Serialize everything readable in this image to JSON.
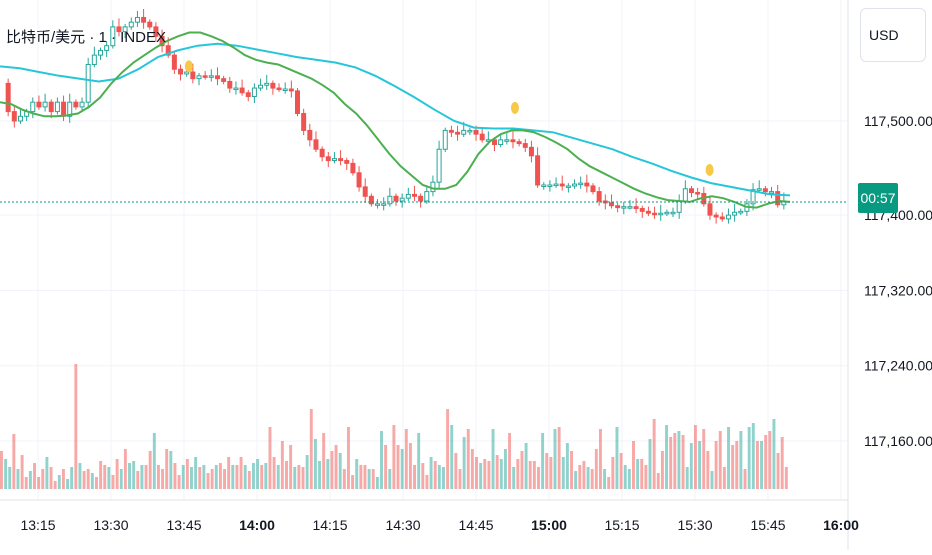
{
  "chart_data": {
    "type": "candlestick",
    "title": "比特币/美元 · 1 · INDEX",
    "currency": "USD",
    "price_axis": {
      "ticks": [
        117160,
        117240,
        117320,
        117400,
        117500
      ],
      "tick_labels": [
        "117,160.00",
        "117,240.00",
        "117,320.00",
        "117,400.00",
        "117,500.00"
      ]
    },
    "time_axis": {
      "ticks": [
        "13:15",
        "13:30",
        "13:45",
        "14:00",
        "14:15",
        "14:30",
        "14:45",
        "15:00",
        "15:15",
        "15:30",
        "15:45",
        "16:00"
      ],
      "bold": [
        "14:00",
        "15:00",
        "16:00"
      ]
    },
    "countdown": "00:57",
    "last_price": 117414,
    "colors": {
      "up": "#26a69a",
      "down": "#ef5350",
      "ma_fast": "#4caf50",
      "ma_slow": "#26c6da",
      "price_line": "#089981",
      "marker": "#f7c948"
    },
    "close_path": [
      117540,
      117510,
      117500,
      117505,
      117510,
      117520,
      117515,
      117520,
      117510,
      117520,
      117505,
      117520,
      117515,
      117520,
      117560,
      117570,
      117575,
      117580,
      117600,
      117595,
      117600,
      117605,
      117610,
      117605,
      117600,
      117590,
      117580,
      117570,
      117555,
      117550,
      117552,
      117545,
      117548,
      117547,
      117548,
      117545,
      117542,
      117535,
      117535,
      117530,
      117526,
      117535,
      117538,
      117540,
      117535,
      117534,
      117534,
      117532,
      117508,
      117490,
      117480,
      117470,
      117462,
      117458,
      117460,
      117458,
      117455,
      117445,
      117430,
      117420,
      117412,
      117412,
      117412,
      117420,
      117415,
      117418,
      117422,
      117420,
      117415,
      117425,
      117435,
      117470,
      117490,
      117488,
      117486,
      117490,
      117490,
      117486,
      117480,
      117480,
      117475,
      117480,
      117480,
      117478,
      117476,
      117472,
      117463,
      117432,
      117432,
      117432,
      117433,
      117431,
      117431,
      117433,
      117434,
      117431,
      117425,
      117415,
      117413,
      117410,
      117408,
      117409,
      117409,
      117407,
      117404,
      117402,
      117401,
      117402,
      117403,
      117403,
      117415,
      117428,
      117424,
      117423,
      117412,
      117400,
      117398,
      117396,
      117400,
      117403,
      117404,
      117412,
      117427,
      117428,
      117425,
      117425,
      117411,
      117415
    ],
    "ma_fast_path": [
      117520,
      117518,
      117512,
      117508,
      117505,
      117505,
      117506,
      117508,
      117515,
      117525,
      117540,
      117552,
      117562,
      117570,
      117578,
      117585,
      117590,
      117594,
      117594,
      117590,
      117585,
      117578,
      117570,
      117565,
      117562,
      117560,
      117555,
      117550,
      117545,
      117538,
      117530,
      117518,
      117508,
      117495,
      117480,
      117465,
      117452,
      117442,
      117432,
      117428,
      117428,
      117432,
      117446,
      117465,
      117478,
      117486,
      117490,
      117490,
      117488,
      117483,
      117477,
      117470,
      117460,
      117452,
      117446,
      117440,
      117434,
      117428,
      117423,
      117419,
      117416,
      117415,
      117414,
      117418,
      117420,
      117418,
      117414,
      117409,
      117408,
      117412,
      117415,
      117414
    ],
    "ma_slow_path": [
      117558,
      117556,
      117552,
      117548,
      117545,
      117542,
      117545,
      117555,
      117568,
      117575,
      117580,
      117582,
      117580,
      117576,
      117572,
      117568,
      117565,
      117562,
      117557,
      117548,
      117537,
      117525,
      117512,
      117500,
      117493,
      117492,
      117492,
      117490,
      117488,
      117482,
      117476,
      117470,
      117462,
      117455,
      117447,
      117440,
      117434,
      117430,
      117426,
      117422,
      117421
    ],
    "event_markers": [
      {
        "time": "13:46",
        "price": 117558
      },
      {
        "time": "14:53",
        "price": 117514
      },
      {
        "time": "15:33",
        "price": 117448
      }
    ],
    "volume": [
      38,
      30,
      22,
      55,
      20,
      34,
      12,
      18,
      26,
      12,
      20,
      32,
      22,
      8,
      14,
      20,
      10,
      22,
      125,
      26,
      18,
      20,
      16,
      12,
      28,
      24,
      22,
      14,
      30,
      20,
      40,
      26,
      28,
      18,
      24,
      24,
      38,
      56,
      24,
      20,
      40,
      38,
      26,
      14,
      24,
      30,
      22,
      32,
      22,
      24,
      16,
      20,
      24,
      26,
      20,
      32,
      24,
      24,
      32,
      24,
      18,
      26,
      30,
      24,
      26,
      62,
      32,
      24,
      48,
      28,
      44,
      22,
      24,
      22,
      34,
      80,
      50,
      28,
      56,
      30,
      38,
      44,
      36,
      20,
      62,
      14,
      30,
      24,
      24,
      20,
      20,
      12,
      58,
      44,
      20,
      64,
      44,
      40,
      60,
      46,
      24,
      56,
      26,
      14,
      32,
      28,
      24,
      22,
      80,
      64,
      36,
      20,
      52,
      60,
      40,
      32,
      26,
      30,
      28,
      60,
      34,
      30,
      40,
      56,
      22,
      30,
      38,
      46,
      28,
      28,
      22,
      56,
      36,
      32,
      60,
      62,
      32,
      46,
      38,
      18,
      24,
      28,
      22,
      20,
      40,
      60,
      20,
      12,
      32,
      62,
      36,
      24,
      20,
      48,
      30,
      30,
      24,
      50,
      70,
      16,
      38,
      64,
      52,
      56,
      58,
      54,
      22,
      46,
      64,
      48,
      60,
      38,
      18,
      48,
      58,
      22,
      62,
      44,
      48,
      58,
      20,
      62,
      66,
      48,
      48,
      54,
      58,
      70,
      36,
      52,
      22
    ]
  }
}
